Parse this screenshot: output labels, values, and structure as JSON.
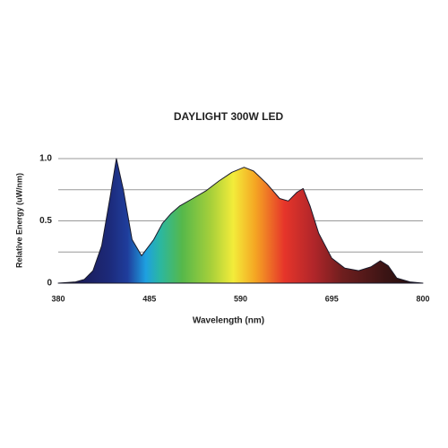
{
  "chart_data": {
    "type": "area",
    "title": "DAYLIGHT 300W LED",
    "x_label": "Wavelength (nm)",
    "y_label": "Relative Energy (uW/nm)",
    "x": [
      380,
      400,
      410,
      420,
      430,
      440,
      447,
      455,
      465,
      476,
      490,
      500,
      510,
      520,
      535,
      550,
      565,
      580,
      594,
      605,
      620,
      635,
      645,
      655,
      662,
      670,
      680,
      695,
      710,
      726,
      740,
      751,
      760,
      770,
      785,
      800
    ],
    "values": [
      0,
      0.01,
      0.03,
      0.1,
      0.3,
      0.7,
      1.0,
      0.75,
      0.35,
      0.22,
      0.35,
      0.48,
      0.56,
      0.62,
      0.68,
      0.74,
      0.82,
      0.89,
      0.93,
      0.9,
      0.8,
      0.68,
      0.66,
      0.73,
      0.76,
      0.62,
      0.4,
      0.2,
      0.12,
      0.1,
      0.13,
      0.18,
      0.14,
      0.04,
      0.01,
      0
    ],
    "xlim": [
      380,
      800
    ],
    "xticks": [
      380,
      485,
      590,
      695,
      800
    ],
    "ylim": [
      0,
      1
    ],
    "yticks": [
      0,
      {
        "value": 0.5,
        "label": "0.5"
      },
      {
        "value": 1,
        "label": "1.0"
      }
    ],
    "ygrid": [
      0,
      0.25,
      0.5,
      0.75,
      1
    ],
    "grid": true
  }
}
